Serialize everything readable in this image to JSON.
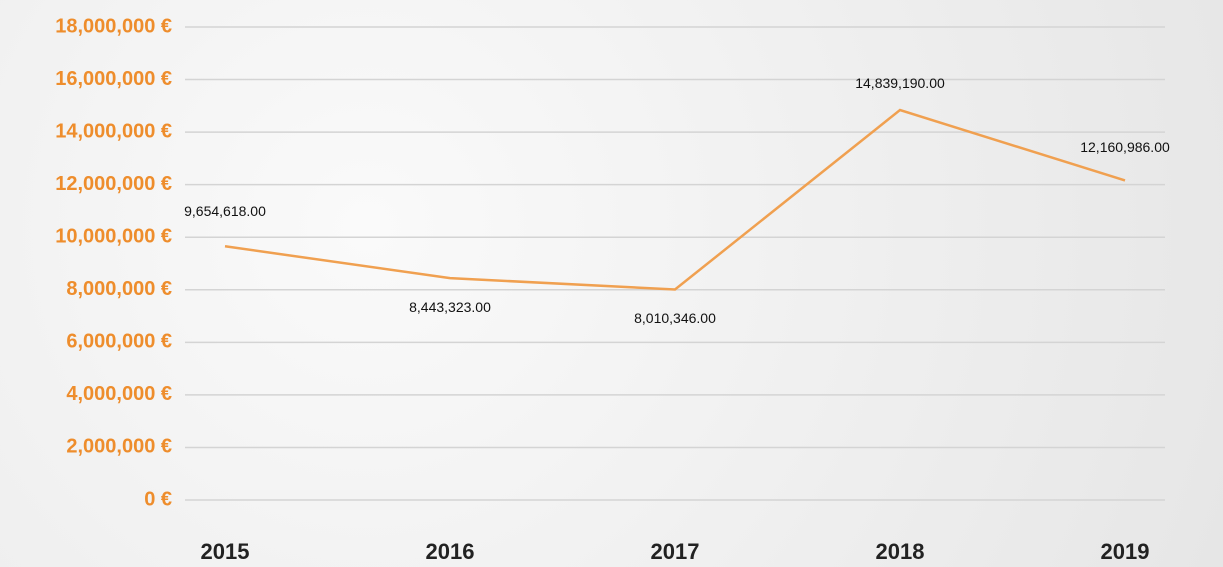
{
  "chart_data": {
    "type": "line",
    "categories": [
      "2015",
      "2016",
      "2017",
      "2018",
      "2019"
    ],
    "values": [
      9654618,
      8443323,
      8010346,
      14839190,
      12160986
    ],
    "value_labels": [
      "9,654,618.00",
      "8,443,323.00",
      "8,010,346.00",
      "14,839,190.00",
      "12,160,986.00"
    ],
    "color": "#f0a050",
    "ylim": [
      0,
      18000000
    ],
    "yticks": [
      {
        "value": 0,
        "label": "0 €"
      },
      {
        "value": 2000000,
        "label": "2,000,000 €"
      },
      {
        "value": 4000000,
        "label": "4,000,000 €"
      },
      {
        "value": 6000000,
        "label": "6,000,000 €"
      },
      {
        "value": 8000000,
        "label": "8,000,000 €"
      },
      {
        "value": 10000000,
        "label": "10,000,000 €"
      },
      {
        "value": 12000000,
        "label": "12,000,000 €"
      },
      {
        "value": 14000000,
        "label": "14,000,000 €"
      },
      {
        "value": 16000000,
        "label": "16,000,000 €"
      },
      {
        "value": 18000000,
        "label": "18,000,000 €"
      }
    ],
    "grid": true
  }
}
